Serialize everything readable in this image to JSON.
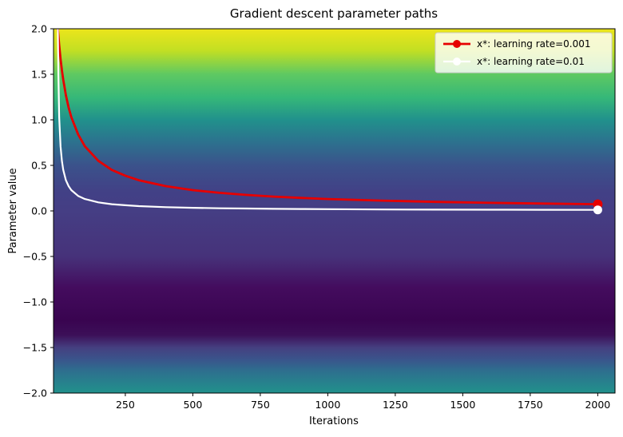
{
  "figure": {
    "title": "Gradient descent parameter paths",
    "xlabel": "Iterations",
    "ylabel": "Parameter value"
  },
  "chart_data": {
    "type": "line",
    "title": "Gradient descent parameter paths",
    "xlabel": "Iterations",
    "ylabel": "Parameter value",
    "xlim": [
      -16,
      2064
    ],
    "ylim": [
      -2.0,
      2.0
    ],
    "grid": false,
    "legend_position": "upper right",
    "background_colormap": {
      "name": "viridis-vertical-gradient",
      "stops": [
        {
          "pos": 0.0,
          "color": "#ece51b"
        },
        {
          "pos": 0.06,
          "color": "#c2df23"
        },
        {
          "pos": 0.125,
          "color": "#5ec962"
        },
        {
          "pos": 0.19,
          "color": "#35b779"
        },
        {
          "pos": 0.25,
          "color": "#21918c"
        },
        {
          "pos": 0.31,
          "color": "#2c728e"
        },
        {
          "pos": 0.375,
          "color": "#3b528b"
        },
        {
          "pos": 0.45,
          "color": "#424086"
        },
        {
          "pos": 0.5,
          "color": "#453e84"
        },
        {
          "pos": 0.625,
          "color": "#46327a"
        },
        {
          "pos": 0.71,
          "color": "#440c5e"
        },
        {
          "pos": 0.8,
          "color": "#390450"
        },
        {
          "pos": 0.84,
          "color": "#3c0f58"
        },
        {
          "pos": 0.875,
          "color": "#453f80"
        },
        {
          "pos": 0.91,
          "color": "#39568c"
        },
        {
          "pos": 0.9375,
          "color": "#2e6e8e"
        },
        {
          "pos": 1.0,
          "color": "#21918c"
        }
      ]
    },
    "x_ticks": [
      {
        "value": 250,
        "label": "250"
      },
      {
        "value": 500,
        "label": "500"
      },
      {
        "value": 750,
        "label": "750"
      },
      {
        "value": 1000,
        "label": "1000"
      },
      {
        "value": 1250,
        "label": "1250"
      },
      {
        "value": 1500,
        "label": "1500"
      },
      {
        "value": 1750,
        "label": "1750"
      },
      {
        "value": 2000,
        "label": "2000"
      }
    ],
    "y_ticks": [
      {
        "value": 2.0,
        "label": "2.0"
      },
      {
        "value": 1.5,
        "label": "1.5"
      },
      {
        "value": 1.0,
        "label": "1.0"
      },
      {
        "value": 0.5,
        "label": "0.5"
      },
      {
        "value": 0.0,
        "label": "0.0"
      },
      {
        "value": -0.5,
        "label": "−0.5"
      },
      {
        "value": -1.0,
        "label": "−1.0"
      },
      {
        "value": -1.5,
        "label": "−1.5"
      },
      {
        "value": -2.0,
        "label": "−2.0"
      }
    ],
    "series": [
      {
        "name": "x*: learning rate=0.001",
        "color": "#e60000",
        "line_width": 2.8,
        "marker": "o",
        "marker_on": "last-point",
        "marker_size": 6,
        "points": [
          [
            0,
            2.0
          ],
          [
            5,
            1.82
          ],
          [
            10,
            1.67
          ],
          [
            15,
            1.545
          ],
          [
            20,
            1.44
          ],
          [
            30,
            1.27
          ],
          [
            40,
            1.135
          ],
          [
            50,
            1.03
          ],
          [
            75,
            0.84
          ],
          [
            100,
            0.71
          ],
          [
            150,
            0.55
          ],
          [
            200,
            0.45
          ],
          [
            250,
            0.387
          ],
          [
            300,
            0.337
          ],
          [
            400,
            0.272
          ],
          [
            500,
            0.228
          ],
          [
            600,
            0.198
          ],
          [
            700,
            0.175
          ],
          [
            800,
            0.157
          ],
          [
            900,
            0.143
          ],
          [
            1000,
            0.131
          ],
          [
            1200,
            0.113
          ],
          [
            1400,
            0.099
          ],
          [
            1600,
            0.089
          ],
          [
            1800,
            0.081
          ],
          [
            2000,
            0.074
          ]
        ]
      },
      {
        "name": "x*: learning rate=0.01",
        "color": "#ffffff",
        "line_width": 2.2,
        "marker": "o",
        "marker_on": "last-point",
        "marker_size": 5.5,
        "points": [
          [
            0,
            2.0
          ],
          [
            2,
            1.5
          ],
          [
            5,
            1.03
          ],
          [
            10,
            0.71
          ],
          [
            15,
            0.55
          ],
          [
            20,
            0.45
          ],
          [
            30,
            0.337
          ],
          [
            40,
            0.272
          ],
          [
            50,
            0.228
          ],
          [
            75,
            0.165
          ],
          [
            100,
            0.131
          ],
          [
            150,
            0.094
          ],
          [
            200,
            0.074
          ],
          [
            250,
            0.062
          ],
          [
            300,
            0.053
          ],
          [
            400,
            0.041
          ],
          [
            500,
            0.034
          ],
          [
            600,
            0.029
          ],
          [
            700,
            0.026
          ],
          [
            800,
            0.023
          ],
          [
            900,
            0.021
          ],
          [
            1000,
            0.019
          ],
          [
            1200,
            0.016
          ],
          [
            1400,
            0.014
          ],
          [
            1600,
            0.013
          ],
          [
            1800,
            0.012
          ],
          [
            2000,
            0.011
          ]
        ]
      }
    ],
    "legend": {
      "facecolor": "#ffffff",
      "face_opacity": 0.8,
      "edgecolor": "#cccccc",
      "entries": [
        "x*: learning rate=0.001",
        "x*: learning rate=0.01"
      ]
    }
  }
}
